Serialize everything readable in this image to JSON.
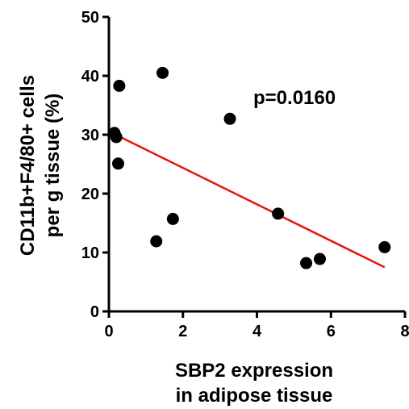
{
  "chart_data": {
    "type": "scatter",
    "title": "",
    "xlabel": [
      "SBP2 expression",
      "in adipose tissue"
    ],
    "ylabel": [
      "CD11b+F4/80+ cells",
      "per g tissue (%)"
    ],
    "xlim": [
      0,
      8
    ],
    "ylim": [
      0,
      50
    ],
    "xticks": [
      0,
      2,
      4,
      6,
      8
    ],
    "yticks": [
      0,
      10,
      20,
      30,
      40,
      50
    ],
    "xtick_labels": [
      "0",
      "2",
      "4",
      "6",
      "8"
    ],
    "ytick_labels": [
      "0",
      "10",
      "20",
      "30",
      "40",
      "50"
    ],
    "grid": false,
    "annotation": "p=0.0160",
    "points": [
      {
        "x": 0.15,
        "y": 30.3
      },
      {
        "x": 0.2,
        "y": 29.6
      },
      {
        "x": 0.25,
        "y": 25.1
      },
      {
        "x": 0.28,
        "y": 38.3
      },
      {
        "x": 1.28,
        "y": 11.9
      },
      {
        "x": 1.45,
        "y": 40.5
      },
      {
        "x": 1.73,
        "y": 15.7
      },
      {
        "x": 3.27,
        "y": 32.7
      },
      {
        "x": 4.57,
        "y": 16.6
      },
      {
        "x": 5.33,
        "y": 8.2
      },
      {
        "x": 5.7,
        "y": 8.9
      },
      {
        "x": 7.45,
        "y": 10.9
      }
    ],
    "regression_line": {
      "x": [
        0.15,
        7.45
      ],
      "y": [
        30.1,
        7.5
      ]
    },
    "colors": {
      "points": "#000000",
      "line": "#e8140c",
      "axes": "#000000"
    }
  }
}
